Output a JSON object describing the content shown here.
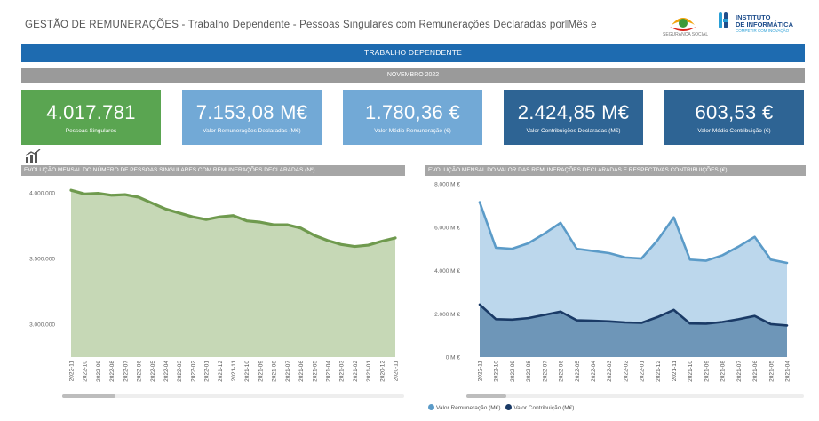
{
  "header": {
    "title": "GESTÃO DE REMUNERAÇÕES - Trabalho Dependente - Pessoas Singulares com Remunerações Declaradas por Mês e",
    "logo_ss_text": "SEGURANÇA SOCIAL",
    "logo_ii_line1": "INSTITUTO",
    "logo_ii_line2": "DE INFORMÁTICA",
    "logo_ii_line3": "COMPETIR COM INOVAÇÃO"
  },
  "banner": "TRABALHO DEPENDENTE",
  "period": "NOVEMBRO 2022",
  "kpis": [
    {
      "value": "4.017.781",
      "label": "Pessoas Singulares",
      "color": "#5aa551"
    },
    {
      "value": "7.153,08 M€",
      "label": "Valor Remunerações Declaradas (M€)",
      "color": "#72a9d6"
    },
    {
      "value": "1.780,36 €",
      "label": "Valor Médio Remuneração (€)",
      "color": "#72a9d6"
    },
    {
      "value": "2.424,85 M€",
      "label": "Valor Contribuições Declaradas (M€)",
      "color": "#2e6494"
    },
    {
      "value": "603,53 €",
      "label": "Valor Médio Contribuição (€)",
      "color": "#2e6494"
    }
  ],
  "panels": {
    "left_title": "EVOLUÇÃO MENSAL DO NÚMERO DE PESSOAS SINGULARES COM REMUNERAÇÕES DECLARADAS (Nº)",
    "right_title": "EVOLUÇÃO MENSAL DO VALOR DAS REMUNERAÇÕES DECLARADAS E RESPECTIVAS CONTRIBUIÇÕES (€)"
  },
  "legend": [
    {
      "label": "Valor Remuneração (M€)",
      "color": "#5b9bc8"
    },
    {
      "label": "Valor Contribuição (M€)",
      "color": "#1a3a66"
    }
  ],
  "chart_data": [
    {
      "type": "area",
      "title": "EVOLUÇÃO MENSAL DO NÚMERO DE PESSOAS SINGULARES COM REMUNERAÇÕES DECLARADAS (Nº)",
      "categories": [
        "2022-11",
        "2022-10",
        "2022-09",
        "2022-08",
        "2022-07",
        "2022-06",
        "2022-05",
        "2022-04",
        "2022-03",
        "2022-02",
        "2022-01",
        "2021-12",
        "2021-11",
        "2021-10",
        "2021-09",
        "2021-08",
        "2021-07",
        "2021-06",
        "2021-05",
        "2021-04",
        "2021-03",
        "2021-02",
        "2021-01",
        "2020-12",
        "2020-11"
      ],
      "y_ticks": [
        {
          "value": 3000000,
          "label": "3.000.000"
        },
        {
          "value": 3500000,
          "label": "3.500.000"
        },
        {
          "value": 4000000,
          "label": "4.000.000"
        }
      ],
      "ylim": [
        2750000,
        4100000
      ],
      "series": [
        {
          "values": [
            4017781,
            3990000,
            3995000,
            3980000,
            3985000,
            3965000,
            3920000,
            3875000,
            3845000,
            3815000,
            3795000,
            3815000,
            3825000,
            3785000,
            3775000,
            3755000,
            3755000,
            3730000,
            3675000,
            3635000,
            3605000,
            3590000,
            3600000,
            3630000,
            3655000
          ],
          "color": "#6f9a4e",
          "fill": "#c6d8b6"
        }
      ]
    },
    {
      "type": "area",
      "title": "EVOLUÇÃO MENSAL DO VALOR DAS REMUNERAÇÕES DECLARADAS E RESPECTIVAS CONTRIBUIÇÕES (€)",
      "categories": [
        "2022-11",
        "2022-10",
        "2022-09",
        "2022-08",
        "2022-07",
        "2022-06",
        "2022-05",
        "2022-04",
        "2022-03",
        "2022-02",
        "2022-01",
        "2021-12",
        "2021-11",
        "2021-10",
        "2021-09",
        "2021-08",
        "2021-07",
        "2021-06",
        "2021-05",
        "2021-04"
      ],
      "y_ticks": [
        {
          "value": 0,
          "label": "0 M €"
        },
        {
          "value": 2000,
          "label": "2.000 M €"
        },
        {
          "value": 4000,
          "label": "4.000 M €"
        },
        {
          "value": 6000,
          "label": "6.000 M €"
        },
        {
          "value": 8000,
          "label": "8.000 M €"
        }
      ],
      "ylim": [
        0,
        8000
      ],
      "series": [
        {
          "name": "Valor Remuneração (M€)",
          "values": [
            7153,
            5050,
            5000,
            5250,
            5700,
            6200,
            5000,
            4900,
            4800,
            4600,
            4550,
            5400,
            6450,
            4500,
            4450,
            4700,
            5100,
            5550,
            4500,
            4350
          ],
          "color": "#5b9bc8",
          "fill": "#bcd7ec"
        },
        {
          "name": "Valor Contribuição (M€)",
          "values": [
            2425,
            1750,
            1730,
            1800,
            1950,
            2100,
            1700,
            1680,
            1650,
            1600,
            1580,
            1850,
            2180,
            1550,
            1540,
            1620,
            1750,
            1900,
            1520,
            1460
          ],
          "color": "#1a3a66",
          "fill": "#6e96b8"
        }
      ]
    }
  ]
}
